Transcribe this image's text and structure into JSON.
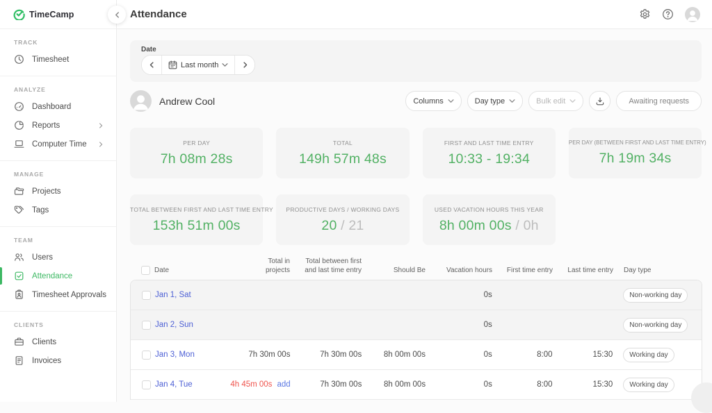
{
  "brand": {
    "name": "TimeCamp"
  },
  "header": {
    "title": "Attendance"
  },
  "colors": {
    "accent_green": "#3db863",
    "value_green": "#52b164",
    "link_blue": "#4c5fd5",
    "alert_red": "#ef544d"
  },
  "sidebar": {
    "sections": [
      {
        "label": "TRACK",
        "items": [
          {
            "label": "Timesheet",
            "icon": "clock"
          }
        ]
      },
      {
        "label": "ANALYZE",
        "items": [
          {
            "label": "Dashboard",
            "icon": "dashboard"
          },
          {
            "label": "Reports",
            "icon": "pie-chart",
            "chevron": true
          },
          {
            "label": "Computer Time",
            "icon": "laptop",
            "chevron": true
          }
        ]
      },
      {
        "label": "MANAGE",
        "items": [
          {
            "label": "Projects",
            "icon": "folder"
          },
          {
            "label": "Tags",
            "icon": "tags"
          }
        ]
      },
      {
        "label": "TEAM",
        "items": [
          {
            "label": "Users",
            "icon": "users"
          },
          {
            "label": "Attendance",
            "icon": "checkbox",
            "active": true
          },
          {
            "label": "Timesheet Approvals",
            "icon": "clipboard"
          }
        ]
      },
      {
        "label": "CLIENTS",
        "items": [
          {
            "label": "Clients",
            "icon": "briefcase"
          },
          {
            "label": "Invoices",
            "icon": "invoice"
          }
        ]
      }
    ]
  },
  "filters": {
    "date_label": "Date",
    "range_label": "Last month"
  },
  "user": {
    "name": "Andrew Cool"
  },
  "toolbar": {
    "columns": "Columns",
    "day_type": "Day type",
    "bulk_edit": "Bulk edit",
    "awaiting": "Awaiting requests"
  },
  "stats": [
    {
      "label": "PER DAY",
      "value": "7h 08m 28s"
    },
    {
      "label": "TOTAL",
      "value": "149h 57m 48s"
    },
    {
      "label": "FIRST AND LAST TIME ENTRY",
      "value": "10:33 - 19:34"
    },
    {
      "label": "PER DAY (BETWEEN FIRST AND LAST TIME ENTRY)",
      "value": "7h 19m 34s",
      "small_label": true
    },
    {
      "label": "TOTAL BETWEEN FIRST AND LAST TIME ENTRY",
      "value": "153h 51m 00s"
    },
    {
      "label": "PRODUCTIVE DAYS / WORKING DAYS",
      "value": "20",
      "muted": " / 21"
    },
    {
      "label": "USED VACATION HOURS THIS YEAR",
      "value": "8h 00m 00s",
      "muted": " / 0h"
    }
  ],
  "table": {
    "headers": [
      "Date",
      "Total in projects",
      "Total between first and last time entry",
      "Should Be",
      "Vacation hours",
      "First time entry",
      "Last time entry",
      "Day type"
    ],
    "rows": [
      {
        "date": "Jan 1, Sat",
        "total_projects": "",
        "alert": false,
        "add": "",
        "total_between": "",
        "should_be": "",
        "vacation": "0s",
        "first": "",
        "last": "",
        "day_type": "Non-working day",
        "nonworking": true
      },
      {
        "date": "Jan 2, Sun",
        "total_projects": "",
        "alert": false,
        "add": "",
        "total_between": "",
        "should_be": "",
        "vacation": "0s",
        "first": "",
        "last": "",
        "day_type": "Non-working day",
        "nonworking": true
      },
      {
        "date": "Jan 3, Mon",
        "total_projects": "7h 30m 00s",
        "alert": false,
        "add": "",
        "total_between": "7h 30m 00s",
        "should_be": "8h 00m 00s",
        "vacation": "0s",
        "first": "8:00",
        "last": "15:30",
        "day_type": "Working day",
        "nonworking": false
      },
      {
        "date": "Jan 4, Tue",
        "total_projects": "4h 45m 00s",
        "alert": true,
        "add": "add",
        "total_between": "7h 30m 00s",
        "should_be": "8h 00m 00s",
        "vacation": "0s",
        "first": "8:00",
        "last": "15:30",
        "day_type": "Working day",
        "nonworking": false
      }
    ]
  }
}
